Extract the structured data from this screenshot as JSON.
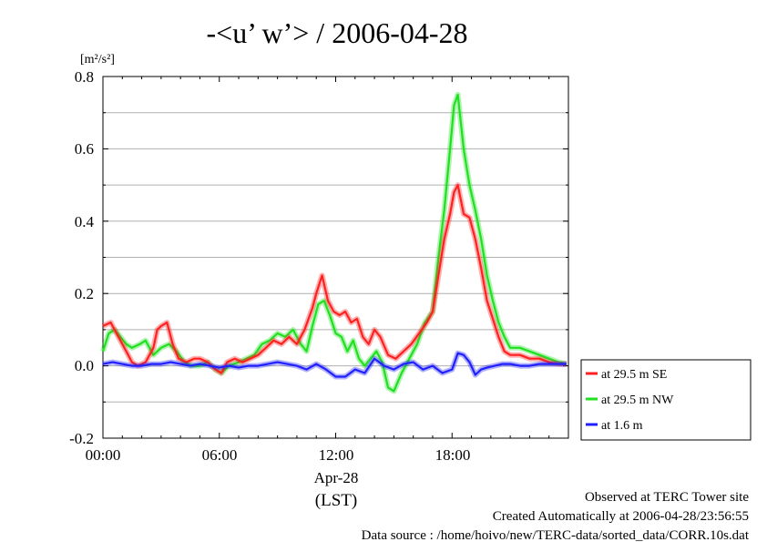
{
  "chart_data": {
    "type": "line",
    "title": "-<u’ w’> / 2006-04-28",
    "yunit": "[m²/s²]",
    "x_ticks": [
      "00:00",
      "06:00",
      "12:00",
      "18:00"
    ],
    "x_date_label": "Apr-28",
    "x_zone_label": "(LST)",
    "xlim": [
      0,
      24
    ],
    "ylim": [
      -0.2,
      0.8
    ],
    "y_ticks": [
      "0.8",
      "0.6",
      "0.4",
      "0.2",
      "0.0",
      "-0.2"
    ],
    "grid": true,
    "legend_position": "right",
    "series": [
      {
        "name": "at 29.5 m SE",
        "color": "#ff2020",
        "x": [
          0,
          0.4,
          0.8,
          1.2,
          1.5,
          1.8,
          2.2,
          2.6,
          2.8,
          3.0,
          3.3,
          3.6,
          3.9,
          4.3,
          4.7,
          5.0,
          5.4,
          5.8,
          6.1,
          6.4,
          6.8,
          7.2,
          7.6,
          8.0,
          8.4,
          8.8,
          9.2,
          9.6,
          10.0,
          10.4,
          10.8,
          11.0,
          11.3,
          11.6,
          11.9,
          12.2,
          12.5,
          12.8,
          13.1,
          13.4,
          13.7,
          14.0,
          14.3,
          14.7,
          15.1,
          15.5,
          15.9,
          16.3,
          16.7,
          17.0,
          17.3,
          17.6,
          17.9,
          18.1,
          18.3,
          18.6,
          18.9,
          19.2,
          19.5,
          19.8,
          20.1,
          20.4,
          20.7,
          21.0,
          21.5,
          22.0,
          22.5,
          23.0,
          23.5,
          23.9
        ],
        "values": [
          0.11,
          0.12,
          0.08,
          0.04,
          0.01,
          0.0,
          0.01,
          0.05,
          0.1,
          0.11,
          0.12,
          0.06,
          0.02,
          0.01,
          0.02,
          0.02,
          0.01,
          -0.01,
          -0.02,
          0.01,
          0.02,
          0.01,
          0.02,
          0.03,
          0.05,
          0.07,
          0.06,
          0.08,
          0.06,
          0.1,
          0.16,
          0.2,
          0.25,
          0.18,
          0.15,
          0.14,
          0.15,
          0.12,
          0.13,
          0.08,
          0.06,
          0.1,
          0.08,
          0.03,
          0.02,
          0.04,
          0.06,
          0.09,
          0.12,
          0.15,
          0.25,
          0.35,
          0.42,
          0.48,
          0.5,
          0.42,
          0.41,
          0.35,
          0.27,
          0.18,
          0.13,
          0.08,
          0.04,
          0.03,
          0.03,
          0.02,
          0.02,
          0.01,
          0.005,
          0.005
        ]
      },
      {
        "name": "at 29.5 m NW",
        "color": "#20e020",
        "x": [
          0,
          0.3,
          0.6,
          0.9,
          1.2,
          1.5,
          1.9,
          2.2,
          2.6,
          3.0,
          3.4,
          3.8,
          4.2,
          4.6,
          5.0,
          5.4,
          5.8,
          6.1,
          6.5,
          7.0,
          7.4,
          7.8,
          8.2,
          8.6,
          9.0,
          9.4,
          9.8,
          10.2,
          10.5,
          10.8,
          11.1,
          11.4,
          11.7,
          12.0,
          12.3,
          12.6,
          12.9,
          13.2,
          13.5,
          13.8,
          14.1,
          14.4,
          14.7,
          15.0,
          15.4,
          15.8,
          16.2,
          16.6,
          17.0,
          17.3,
          17.6,
          17.9,
          18.1,
          18.3,
          18.6,
          18.9,
          19.2,
          19.5,
          19.8,
          20.1,
          20.4,
          20.7,
          21.0,
          21.5,
          22.0,
          22.5,
          23.0,
          23.5,
          23.9
        ],
        "values": [
          0.04,
          0.09,
          0.1,
          0.08,
          0.06,
          0.05,
          0.06,
          0.07,
          0.03,
          0.05,
          0.06,
          0.04,
          0.01,
          0.0,
          0.0,
          0.01,
          -0.01,
          -0.02,
          0.0,
          0.01,
          0.02,
          0.03,
          0.06,
          0.07,
          0.09,
          0.08,
          0.1,
          0.06,
          0.04,
          0.11,
          0.17,
          0.18,
          0.14,
          0.09,
          0.08,
          0.04,
          0.07,
          0.02,
          0.0,
          0.02,
          0.04,
          0.01,
          -0.06,
          -0.07,
          -0.02,
          0.02,
          0.06,
          0.12,
          0.15,
          0.3,
          0.43,
          0.6,
          0.72,
          0.75,
          0.6,
          0.5,
          0.43,
          0.35,
          0.25,
          0.18,
          0.12,
          0.08,
          0.05,
          0.05,
          0.04,
          0.03,
          0.02,
          0.01,
          0.005
        ]
      },
      {
        "name": "at 1.6 m",
        "color": "#2020ff",
        "x": [
          0,
          0.5,
          1.0,
          1.5,
          2.0,
          2.5,
          3.0,
          3.5,
          4.0,
          4.5,
          5.0,
          5.5,
          6.0,
          6.5,
          7.0,
          7.5,
          8.0,
          8.5,
          9.0,
          9.5,
          10.0,
          10.5,
          11.0,
          11.5,
          12.0,
          12.5,
          13.0,
          13.5,
          14.0,
          14.5,
          15.0,
          15.5,
          16.0,
          16.5,
          17.0,
          17.5,
          18.0,
          18.3,
          18.6,
          18.9,
          19.2,
          19.5,
          19.8,
          20.2,
          20.6,
          21.0,
          21.5,
          22.0,
          22.5,
          23.0,
          23.5,
          23.9
        ],
        "values": [
          0.005,
          0.01,
          0.005,
          0.0,
          0.0,
          0.005,
          0.005,
          0.01,
          0.005,
          0.0,
          0.005,
          0.0,
          -0.005,
          0.0,
          -0.005,
          0.0,
          0.0,
          0.005,
          0.01,
          0.005,
          0.0,
          -0.01,
          0.005,
          -0.01,
          -0.03,
          -0.03,
          -0.01,
          -0.02,
          0.02,
          0.0,
          -0.01,
          0.005,
          0.01,
          -0.01,
          0.0,
          -0.02,
          -0.01,
          0.035,
          0.03,
          0.01,
          -0.025,
          -0.01,
          -0.005,
          0.0,
          0.005,
          0.005,
          0.0,
          0.0,
          0.005,
          0.005,
          0.005,
          0.005
        ]
      }
    ]
  },
  "footer": {
    "line1": "Observed at TERC Tower site",
    "line2": "Created Automatically at 2006-04-28/23:56:55",
    "line3": "Data source : /home/hoivo/new/TERC-data/sorted_data/CORR.10s.dat"
  }
}
